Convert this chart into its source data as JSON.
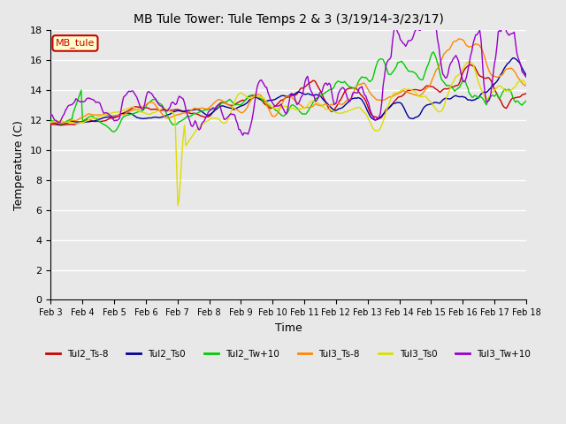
{
  "title": "MB Tule Tower: Tule Temps 2 & 3 (3/19/14-3/23/17)",
  "xlabel": "Time",
  "ylabel": "Temperature (C)",
  "ylim": [
    0,
    18
  ],
  "xlim": [
    0,
    15
  ],
  "annotation_label": "MB_tule",
  "legend_entries": [
    "Tul2_Ts-8",
    "Tul2_Ts0",
    "Tul2_Tw+10",
    "Tul3_Ts-8",
    "Tul3_Ts0",
    "Tul3_Tw+10"
  ],
  "line_colors": [
    "#cc0000",
    "#000099",
    "#00cc00",
    "#ff8800",
    "#dddd00",
    "#9900cc"
  ],
  "xtick_labels": [
    "Feb 3",
    "Feb 4",
    "Feb 5",
    "Feb 6",
    "Feb 7",
    "Feb 8",
    "Feb 9",
    "Feb 10",
    "Feb 11",
    "Feb 12",
    "Feb 13",
    "Feb 14",
    "Feb 15",
    "Feb 16",
    "Feb 17",
    "Feb 18"
  ],
  "background_color": "#e8e8e8",
  "plot_bg_color": "#e8e8e8",
  "grid_color": "#ffffff"
}
